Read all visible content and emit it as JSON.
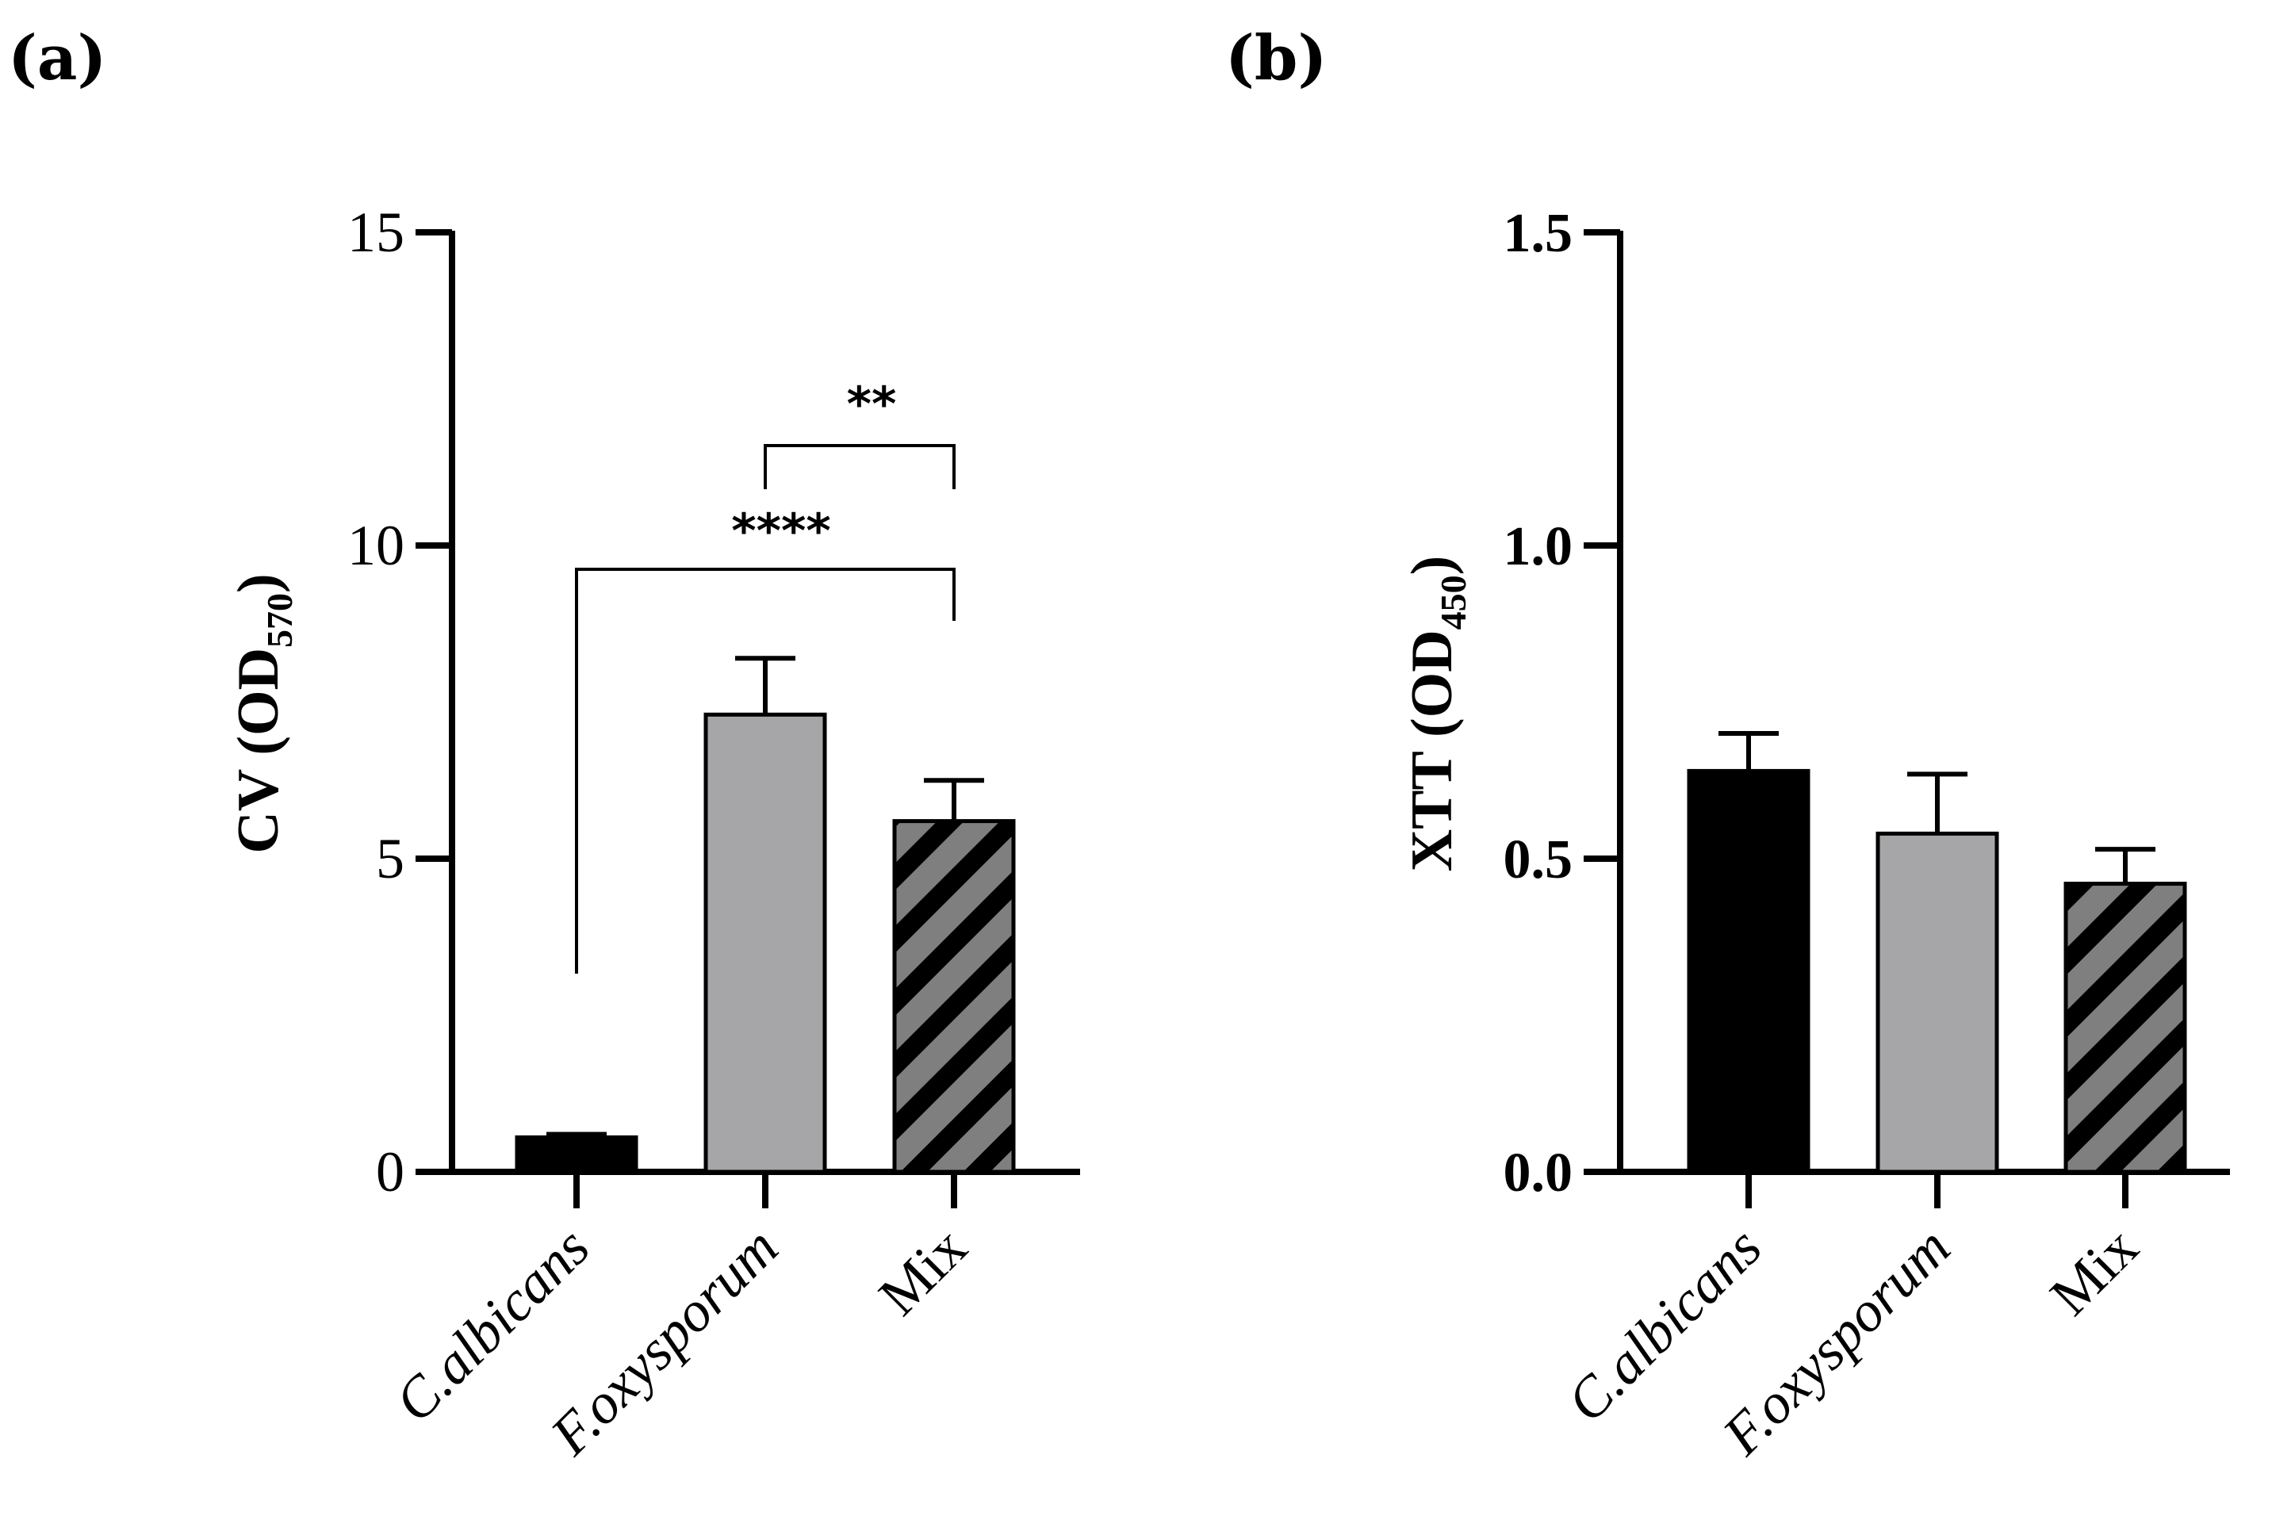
{
  "chart_data": [
    {
      "panel_label": "(a)",
      "type": "bar",
      "categories": [
        "C.albicans",
        "F.oxysporum",
        "Mix"
      ],
      "values": [
        0.55,
        7.3,
        5.6
      ],
      "errors": [
        0.05,
        0.9,
        0.65
      ],
      "fills": [
        "#000000",
        "#a6a6a8",
        "#7f7f7f"
      ],
      "patterns": [
        "solid",
        "solid",
        "hatched"
      ],
      "ylabel_main": "CV (OD",
      "ylabel_sub": "570",
      "ylabel_close": ")",
      "ylim": [
        0,
        15
      ],
      "yticks": [
        0,
        5,
        10,
        15
      ],
      "ytick_labels": [
        "0",
        "5",
        "10",
        "15"
      ],
      "significance": [
        {
          "from": 0,
          "to": 2,
          "label": "****"
        },
        {
          "from": 1,
          "to": 2,
          "label": "**"
        }
      ]
    },
    {
      "panel_label": "(b)",
      "type": "bar",
      "categories": [
        "C.albicans",
        "F.oxysporum",
        "Mix"
      ],
      "values": [
        0.64,
        0.54,
        0.46
      ],
      "errors": [
        0.06,
        0.095,
        0.055
      ],
      "fills": [
        "#000000",
        "#a6a6a8",
        "#7f7f7f"
      ],
      "patterns": [
        "solid",
        "solid",
        "hatched"
      ],
      "ylabel_main": "XTT (OD",
      "ylabel_sub": "450",
      "ylabel_close": ")",
      "ylim": [
        0,
        1.5
      ],
      "yticks": [
        0,
        0.5,
        1.0,
        1.5
      ],
      "ytick_labels": [
        "0.0",
        "0.5",
        "1.0",
        "1.5"
      ],
      "significance": []
    }
  ]
}
